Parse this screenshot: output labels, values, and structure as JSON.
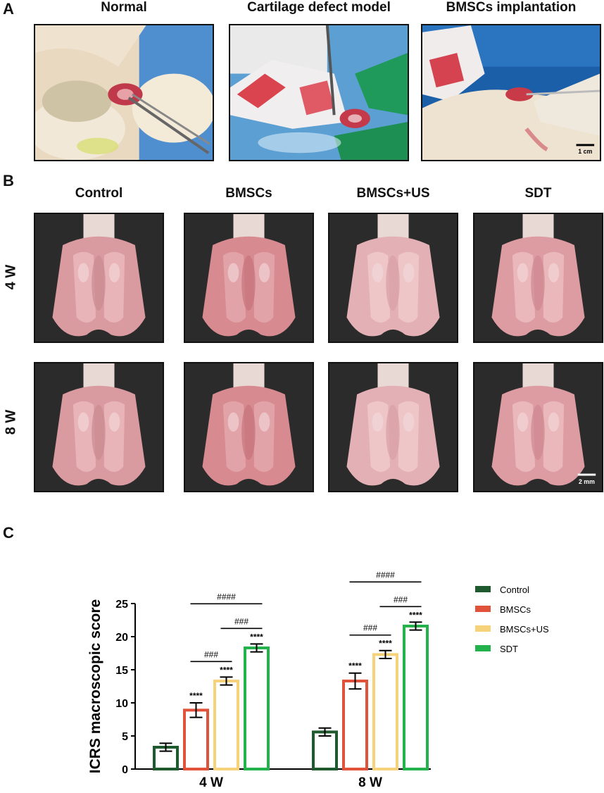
{
  "panel_a": {
    "letter": "A",
    "photos": [
      {
        "title": "Normal",
        "icon": "surgery-photo-normal"
      },
      {
        "title": "Cartilage defect model",
        "icon": "surgery-photo-defect"
      },
      {
        "title": "BMSCs implantation",
        "icon": "surgery-photo-implantation"
      }
    ],
    "scale_label": "1 cm"
  },
  "panel_b": {
    "letter": "B",
    "columns": [
      "Control",
      "BMSCs",
      "BMSCs+US",
      "SDT"
    ],
    "rows": [
      "4 W",
      "8 W"
    ],
    "scale_label": "2 mm"
  },
  "panel_c": {
    "letter": "C"
  },
  "chart_data": {
    "type": "bar",
    "categories": [
      "4 W",
      "8 W"
    ],
    "ylabel": "ICRS macroscopic score",
    "ylim": [
      0,
      25
    ],
    "yticks": [
      0,
      5,
      10,
      15,
      20,
      25
    ],
    "bar_style": "hollow outlined bars with error bars",
    "series": [
      {
        "name": "Control",
        "color": "#1e5a2d",
        "values": [
          3.3,
          5.6
        ],
        "errors": [
          0.6,
          0.6
        ],
        "stars": [
          "",
          ""
        ]
      },
      {
        "name": "BMSCs",
        "color": "#e0533a",
        "values": [
          8.9,
          13.3
        ],
        "errors": [
          1.1,
          1.2
        ],
        "stars": [
          "****",
          "****"
        ]
      },
      {
        "name": "BMSCs+US",
        "color": "#f6d27a",
        "values": [
          13.3,
          17.3
        ],
        "errors": [
          0.6,
          0.6
        ],
        "stars": [
          "****",
          "****"
        ]
      },
      {
        "name": "SDT",
        "color": "#23b24b",
        "values": [
          18.3,
          21.6
        ],
        "errors": [
          0.6,
          0.6
        ],
        "stars": [
          "****",
          "****"
        ]
      }
    ],
    "comparisons": [
      {
        "group": 0,
        "from": 1,
        "to": 2,
        "label": "###"
      },
      {
        "group": 0,
        "from": 2,
        "to": 3,
        "label": "###"
      },
      {
        "group": 0,
        "from": 1,
        "to": 3,
        "label": "####"
      },
      {
        "group": 1,
        "from": 1,
        "to": 2,
        "label": "###"
      },
      {
        "group": 1,
        "from": 2,
        "to": 3,
        "label": "###"
      },
      {
        "group": 1,
        "from": 1,
        "to": 3,
        "label": "####"
      }
    ],
    "legend_position": "right"
  }
}
